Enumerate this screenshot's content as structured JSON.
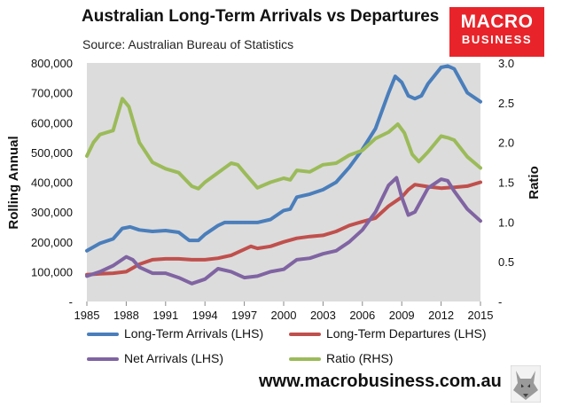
{
  "chart_data": {
    "type": "line",
    "title": "Australian Long-Term Arrivals vs Departures",
    "subtitle": "Source: Australian Bureau of Statistics",
    "ylabel": "Rolling Annual",
    "y2label": "Ratio",
    "xlim": [
      1985,
      2015
    ],
    "ylim": [
      0,
      800000
    ],
    "y2lim": [
      0,
      3.0
    ],
    "x_ticks": [
      "1985",
      "1988",
      "1991",
      "1994",
      "1997",
      "2000",
      "2003",
      "2006",
      "2009",
      "2012",
      "2015"
    ],
    "y_ticks": [
      "-",
      "100,000",
      "200,000",
      "300,000",
      "400,000",
      "500,000",
      "600,000",
      "700,000",
      "800,000"
    ],
    "y2_ticks": [
      "-",
      "0.5",
      "1.0",
      "1.5",
      "2.0",
      "2.5",
      "3.0"
    ],
    "legend_position": "bottom",
    "series": [
      {
        "name": "Long-Term Arrivals (LHS)",
        "axis": "left",
        "color": "#4a7ebb",
        "x": [
          1985,
          1986,
          1987,
          1987.7,
          1988.3,
          1989,
          1990,
          1991,
          1992,
          1992.8,
          1993.5,
          1994,
          1995,
          1995.5,
          1996,
          1997,
          1998,
          1999,
          2000,
          2000.5,
          2001,
          2002,
          2003,
          2004,
          2005,
          2006,
          2007,
          2008,
          2008.5,
          2009,
          2009.5,
          2010,
          2010.5,
          2011,
          2012,
          2012.5,
          2013,
          2014,
          2015
        ],
        "y": [
          170000,
          195000,
          210000,
          245000,
          250000,
          240000,
          235000,
          238000,
          232000,
          205000,
          205000,
          225000,
          255000,
          265000,
          265000,
          265000,
          265000,
          275000,
          305000,
          310000,
          350000,
          360000,
          375000,
          400000,
          450000,
          510000,
          580000,
          700000,
          755000,
          735000,
          690000,
          680000,
          690000,
          730000,
          785000,
          790000,
          780000,
          700000,
          670000
        ]
      },
      {
        "name": "Long-Term Departures (LHS)",
        "axis": "left",
        "color": "#c0504d",
        "x": [
          1985,
          1986,
          1987,
          1988,
          1989,
          1990,
          1991,
          1992,
          1993,
          1994,
          1995,
          1996,
          1997,
          1997.5,
          1998,
          1999,
          2000,
          2001,
          2002,
          2003,
          2004,
          2005,
          2006,
          2007,
          2008,
          2009,
          2009.5,
          2010,
          2011,
          2012,
          2013,
          2014,
          2015
        ],
        "y": [
          90000,
          93000,
          95000,
          100000,
          125000,
          140000,
          143000,
          143000,
          140000,
          140000,
          145000,
          155000,
          175000,
          185000,
          178000,
          185000,
          200000,
          212000,
          218000,
          222000,
          235000,
          255000,
          268000,
          280000,
          320000,
          350000,
          375000,
          392000,
          385000,
          380000,
          383000,
          387000,
          400000
        ]
      },
      {
        "name": "Net Arrivals (LHS)",
        "axis": "left",
        "color": "#8064a2",
        "x": [
          1985,
          1986,
          1987,
          1988,
          1988.5,
          1989,
          1990,
          1991,
          1992,
          1993,
          1994,
          1995,
          1996,
          1997,
          1998,
          1999,
          2000,
          2001,
          2002,
          2003,
          2004,
          2005,
          2006,
          2007,
          2008,
          2008.6,
          2009,
          2009.5,
          2010,
          2011,
          2012,
          2012.5,
          2013,
          2014,
          2015
        ],
        "y": [
          85000,
          100000,
          120000,
          150000,
          140000,
          115000,
          95000,
          95000,
          80000,
          60000,
          75000,
          110000,
          100000,
          80000,
          85000,
          100000,
          108000,
          140000,
          145000,
          160000,
          170000,
          200000,
          240000,
          300000,
          390000,
          415000,
          350000,
          290000,
          300000,
          380000,
          410000,
          405000,
          370000,
          310000,
          270000
        ]
      },
      {
        "name": "Ratio (RHS)",
        "axis": "right",
        "color": "#9bbb59",
        "x": [
          1985,
          1985.5,
          1986,
          1987,
          1987.7,
          1988.2,
          1989,
          1990,
          1991,
          1992,
          1993,
          1993.5,
          1994,
          1995,
          1996,
          1996.5,
          1997,
          1998,
          1999,
          2000,
          2000.5,
          2001,
          2002,
          2003,
          2004,
          2005,
          2006,
          2007,
          2008,
          2008.7,
          2009.2,
          2009.8,
          2010.3,
          2011,
          2012,
          2012.5,
          2013,
          2014,
          2015
        ],
        "y": [
          1.83,
          2.0,
          2.1,
          2.15,
          2.55,
          2.45,
          2.0,
          1.75,
          1.67,
          1.62,
          1.45,
          1.42,
          1.5,
          1.62,
          1.74,
          1.72,
          1.62,
          1.43,
          1.5,
          1.55,
          1.53,
          1.65,
          1.63,
          1.72,
          1.74,
          1.84,
          1.9,
          2.05,
          2.13,
          2.23,
          2.12,
          1.85,
          1.76,
          1.88,
          2.08,
          2.06,
          2.03,
          1.82,
          1.68
        ]
      }
    ]
  },
  "logo": {
    "line1": "MACRO",
    "line2": "BUSINESS"
  },
  "website": "www.macrobusiness.com.au"
}
